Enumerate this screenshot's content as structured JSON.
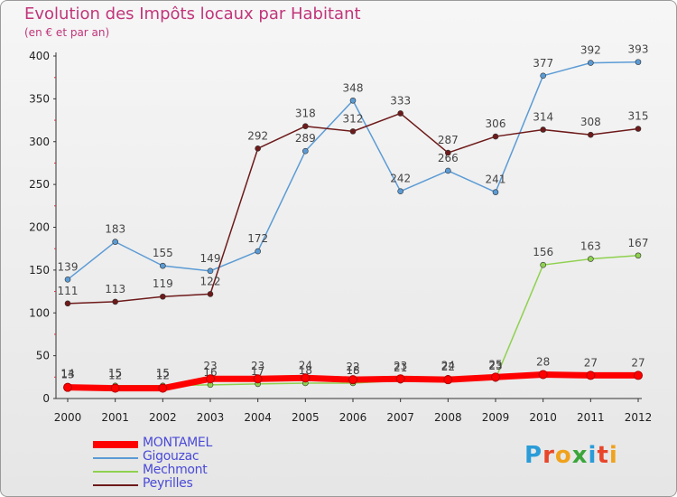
{
  "title": "Evolution des Impôts locaux par Habitant",
  "subtitle": "(en € et par an)",
  "logo": {
    "text": "Proxiti",
    "letter_colors": [
      "#2a9cd8",
      "#e8462a",
      "#f0a21d",
      "#3aa63a",
      "#2a9cd8",
      "#e8462a",
      "#f0a21d"
    ]
  },
  "chart_data": {
    "type": "line",
    "x": [
      "2000",
      "2001",
      "2002",
      "2003",
      "2004",
      "2005",
      "2006",
      "2007",
      "2008",
      "2009",
      "2010",
      "2011",
      "2012"
    ],
    "ylim": [
      0,
      400
    ],
    "yticks": [
      0,
      50,
      100,
      150,
      200,
      250,
      300,
      350,
      400
    ],
    "grid": false,
    "legend_position": "bottom-left",
    "series": [
      {
        "name": "Gigouzac",
        "color": "#5b9bd5",
        "values": [
          139,
          183,
          155,
          149,
          172,
          289,
          348,
          242,
          266,
          241,
          377,
          392,
          393
        ]
      },
      {
        "name": "Peyrilles",
        "color": "#6e1a1a",
        "values": [
          111,
          113,
          119,
          122,
          292,
          318,
          312,
          333,
          287,
          306,
          314,
          308,
          315
        ]
      },
      {
        "name": "Mechmont",
        "color": "#8fd14f",
        "values": [
          14,
          15,
          15,
          16,
          17,
          18,
          18,
          21,
          24,
          23,
          156,
          163,
          167
        ]
      },
      {
        "name": "MONTAMEL",
        "color": "#ff0000",
        "values": [
          13,
          12,
          12,
          23,
          23,
          24,
          22,
          23,
          22,
          25,
          28,
          27,
          27
        ]
      }
    ]
  }
}
